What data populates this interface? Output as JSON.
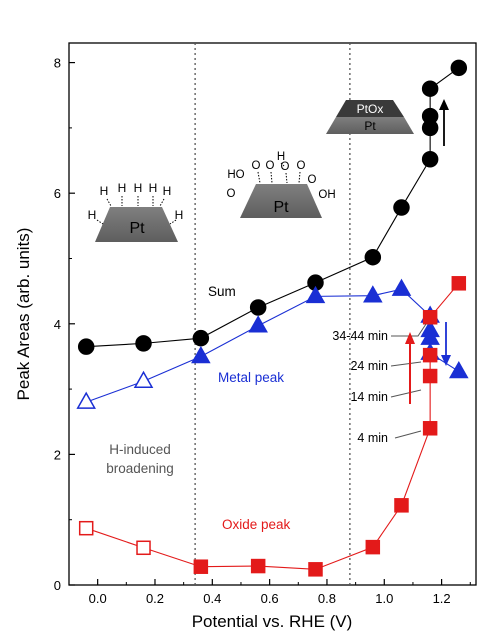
{
  "chart_data": {
    "type": "scatter",
    "xlabel": "Potential vs. RHE (V)",
    "ylabel": "Peak Areas (arb. units)",
    "xlim": [
      -0.1,
      1.32
    ],
    "ylim": [
      0,
      8.3
    ],
    "xticks": [
      0.0,
      0.2,
      0.4,
      0.6,
      0.8,
      1.0,
      1.2
    ],
    "xtick_labels": [
      "0.0",
      "0.2",
      "0.4",
      "0.6",
      "0.8",
      "1.0",
      "1.2"
    ],
    "yticks": [
      0,
      2,
      4,
      6,
      8
    ],
    "ytick_labels": [
      "0",
      "2",
      "4",
      "6",
      "8"
    ],
    "vlines": [
      0.34,
      0.88
    ],
    "series": [
      {
        "name": "Sum",
        "label": "Sum",
        "color": "#000000",
        "marker": "circle",
        "points": [
          {
            "x": -0.04,
            "y": 3.65
          },
          {
            "x": 0.16,
            "y": 3.7
          },
          {
            "x": 0.36,
            "y": 3.78
          },
          {
            "x": 0.56,
            "y": 4.25
          },
          {
            "x": 0.76,
            "y": 4.63
          },
          {
            "x": 0.96,
            "y": 5.02
          },
          {
            "x": 1.06,
            "y": 5.78
          },
          {
            "x": 1.16,
            "y": 6.52
          },
          {
            "x": 1.16,
            "y": 7.0
          },
          {
            "x": 1.16,
            "y": 7.18
          },
          {
            "x": 1.16,
            "y": 7.6
          },
          {
            "x": 1.26,
            "y": 7.92
          }
        ]
      },
      {
        "name": "Metal peak",
        "label": "Metal peak",
        "color": "#1a2fd4",
        "marker": "triangle",
        "points": [
          {
            "x": -0.04,
            "y": 2.8,
            "open": true
          },
          {
            "x": 0.16,
            "y": 3.12,
            "open": true
          },
          {
            "x": 0.36,
            "y": 3.5
          },
          {
            "x": 0.56,
            "y": 3.97
          },
          {
            "x": 0.76,
            "y": 4.42
          },
          {
            "x": 0.96,
            "y": 4.43
          },
          {
            "x": 1.06,
            "y": 4.53
          },
          {
            "x": 1.16,
            "y": 4.12
          },
          {
            "x": 1.16,
            "y": 3.9
          },
          {
            "x": 1.16,
            "y": 3.78
          },
          {
            "x": 1.16,
            "y": 3.55
          },
          {
            "x": 1.26,
            "y": 3.27
          }
        ]
      },
      {
        "name": "Oxide peak",
        "label": "Oxide peak",
        "color": "#e31a1a",
        "marker": "square",
        "points": [
          {
            "x": -0.04,
            "y": 0.87,
            "open": true
          },
          {
            "x": 0.16,
            "y": 0.57,
            "open": true
          },
          {
            "x": 0.36,
            "y": 0.28
          },
          {
            "x": 0.56,
            "y": 0.29
          },
          {
            "x": 0.76,
            "y": 0.24
          },
          {
            "x": 0.96,
            "y": 0.58
          },
          {
            "x": 1.06,
            "y": 1.22
          },
          {
            "x": 1.16,
            "y": 2.4
          },
          {
            "x": 1.16,
            "y": 3.2
          },
          {
            "x": 1.16,
            "y": 3.52
          },
          {
            "x": 1.16,
            "y": 4.1
          },
          {
            "x": 1.26,
            "y": 4.62
          }
        ]
      }
    ],
    "annotations": {
      "h_induced": [
        "H-induced",
        "broadening"
      ],
      "times": [
        {
          "text": "34-44 min",
          "x": 1.16,
          "y": 4.1
        },
        {
          "text": "24 min",
          "x": 1.16,
          "y": 3.55
        },
        {
          "text": "14 min",
          "x": 1.16,
          "y": 3.2
        },
        {
          "text": "4 min",
          "x": 1.16,
          "y": 2.4
        }
      ],
      "pt_label": "Pt",
      "ptox_label": "PtOx",
      "h_atom": "H",
      "o_atom": "O",
      "oh_group": "OH",
      "ho_group": "HO"
    }
  }
}
